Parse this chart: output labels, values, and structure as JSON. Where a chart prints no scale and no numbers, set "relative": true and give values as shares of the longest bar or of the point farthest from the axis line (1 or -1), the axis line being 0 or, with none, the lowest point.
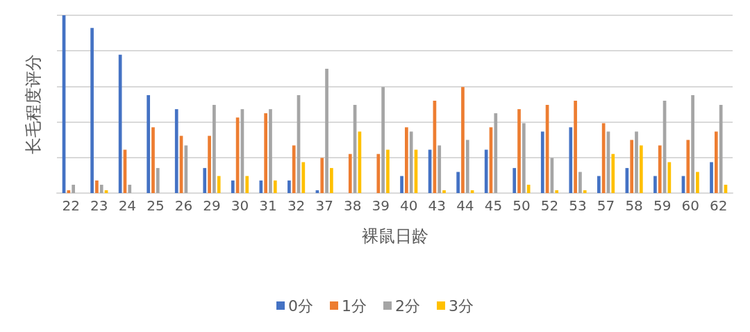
{
  "chart_data": {
    "type": "bar",
    "xlabel": "裸鼠日龄",
    "ylabel": "长毛程度评分",
    "relative": true,
    "grid": "y",
    "legend": "bottom",
    "categories": [
      "22",
      "23",
      "24",
      "25",
      "26",
      "29",
      "30",
      "31",
      "32",
      "37",
      "38",
      "39",
      "40",
      "43",
      "44",
      "45",
      "50",
      "52",
      "53",
      "57",
      "58",
      "59",
      "60",
      "62"
    ],
    "series": [
      {
        "name": "0分",
        "color": "#4472c4",
        "values": [
          1,
          0.929,
          0.778,
          0.551,
          0.472,
          0.141,
          0.071,
          0.071,
          0.071,
          0.016,
          0,
          0,
          0.096,
          0.244,
          0.119,
          0.244,
          0.141,
          0.346,
          0.37,
          0.096,
          0.141,
          0.096,
          0.096,
          0.174
        ]
      },
      {
        "name": "1分",
        "color": "#ed7d31",
        "values": [
          0.016,
          0.071,
          0.244,
          0.37,
          0.322,
          0.322,
          0.425,
          0.449,
          0.268,
          0.198,
          0.22,
          0.22,
          0.37,
          0.52,
          0.597,
          0.37,
          0.472,
          0.496,
          0.52,
          0.393,
          0.299,
          0.268,
          0.299,
          0.346
        ]
      },
      {
        "name": "2分",
        "color": "#a5a5a5",
        "values": [
          0.047,
          0.047,
          0.047,
          0.141,
          0.268,
          0.496,
          0.472,
          0.472,
          0.551,
          0.699,
          0.496,
          0.597,
          0.346,
          0.268,
          0.299,
          0.449,
          0.393,
          0.198,
          0.119,
          0.346,
          0.346,
          0.52,
          0.551,
          0.496
        ]
      },
      {
        "name": "3分",
        "color": "#ffc000",
        "values": [
          0,
          0.016,
          0,
          0,
          0,
          0.096,
          0.096,
          0.071,
          0.174,
          0.141,
          0.346,
          0.244,
          0.244,
          0.016,
          0.016,
          0,
          0.047,
          0.016,
          0.016,
          0.22,
          0.268,
          0.174,
          0.119,
          0.047
        ]
      }
    ]
  }
}
